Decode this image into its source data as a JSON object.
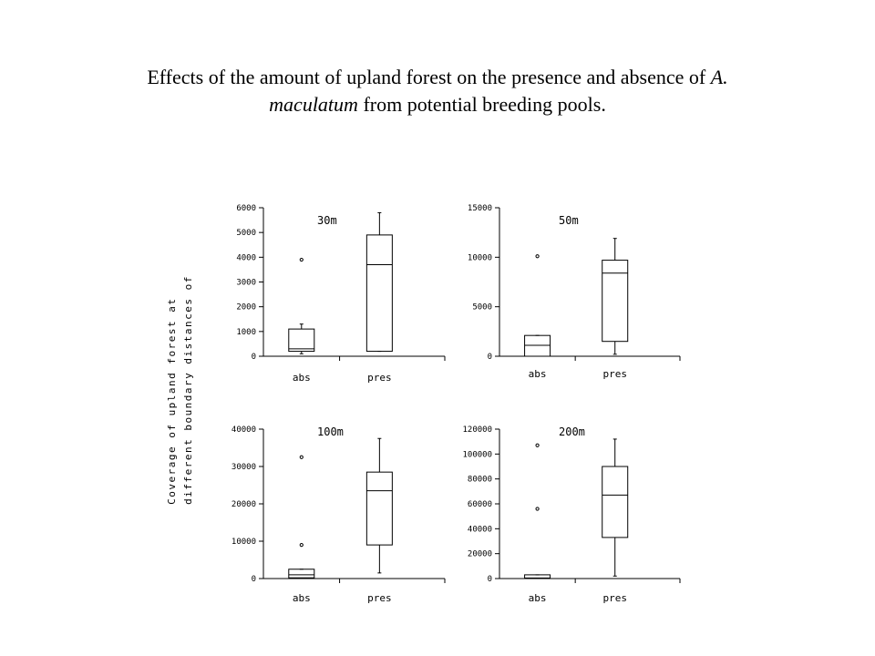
{
  "slide": {
    "title_prefix": "Effects of the amount of upland forest on the presence and absence of ",
    "title_species_genus": "A.",
    "title_species_epithet": "maculatum",
    "title_suffix": " from potential breeding pools.",
    "ylabel_line1": "Coverage of upland forest at",
    "ylabel_line2": "different boundary distances of"
  },
  "chart_data": [
    {
      "type": "boxplot",
      "title": "30m",
      "categories": [
        "abs",
        "pres"
      ],
      "ylim": [
        0,
        6000
      ],
      "yticks": [
        0,
        1000,
        2000,
        3000,
        4000,
        5000,
        6000
      ],
      "boxes": [
        {
          "category": "abs",
          "whisker_low": 100,
          "q1": 200,
          "median": 300,
          "q3": 1100,
          "whisker_high": 1300,
          "outliers": [
            3900
          ]
        },
        {
          "category": "pres",
          "whisker_low": 200,
          "q1": 200,
          "median": 3700,
          "q3": 4900,
          "whisker_high": 5800,
          "outliers": []
        }
      ]
    },
    {
      "type": "boxplot",
      "title": "50m",
      "categories": [
        "abs",
        "pres"
      ],
      "ylim": [
        0,
        15000
      ],
      "yticks": [
        0,
        5000,
        10000,
        15000
      ],
      "boxes": [
        {
          "category": "abs",
          "whisker_low": 0,
          "q1": 0,
          "median": 1100,
          "q3": 2100,
          "whisker_high": 2100,
          "outliers": [
            10100
          ]
        },
        {
          "category": "pres",
          "whisker_low": 200,
          "q1": 1500,
          "median": 8400,
          "q3": 9700,
          "whisker_high": 11900,
          "outliers": []
        }
      ]
    },
    {
      "type": "boxplot",
      "title": "100m",
      "categories": [
        "abs",
        "pres"
      ],
      "ylim": [
        0,
        40000
      ],
      "yticks": [
        0,
        10000,
        20000,
        30000,
        40000
      ],
      "boxes": [
        {
          "category": "abs",
          "whisker_low": 0,
          "q1": 200,
          "median": 1000,
          "q3": 2500,
          "whisker_high": 2500,
          "outliers": [
            9000,
            32500
          ]
        },
        {
          "category": "pres",
          "whisker_low": 1500,
          "q1": 9000,
          "median": 23500,
          "q3": 28500,
          "whisker_high": 37500,
          "outliers": []
        }
      ]
    },
    {
      "type": "boxplot",
      "title": "200m",
      "categories": [
        "abs",
        "pres"
      ],
      "ylim": [
        0,
        120000
      ],
      "yticks": [
        0,
        20000,
        40000,
        60000,
        80000,
        100000,
        120000
      ],
      "boxes": [
        {
          "category": "abs",
          "whisker_low": 0,
          "q1": 0,
          "median": 500,
          "q3": 3000,
          "whisker_high": 3000,
          "outliers": [
            56000,
            107000
          ]
        },
        {
          "category": "pres",
          "whisker_low": 2000,
          "q1": 33000,
          "median": 67000,
          "q3": 90000,
          "whisker_high": 112000,
          "outliers": []
        }
      ]
    }
  ]
}
